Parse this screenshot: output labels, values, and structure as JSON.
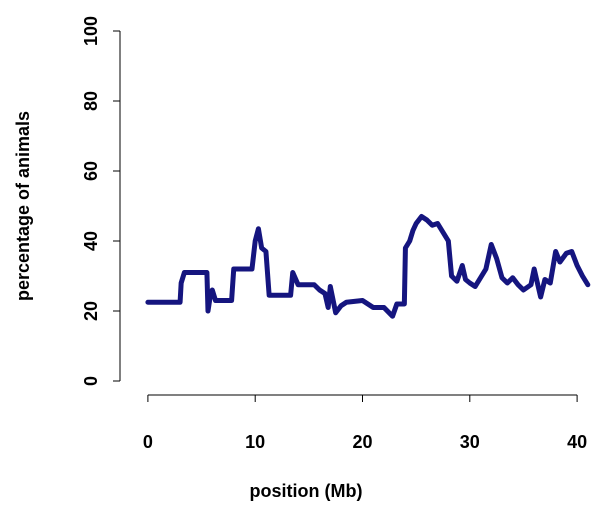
{
  "chart_data": {
    "type": "line",
    "xlabel": "position (Mb)",
    "ylabel": "percentage of animals",
    "x": [
      0,
      3,
      3.1,
      3.4,
      5.5,
      5.6,
      5.8,
      6,
      6.3,
      7.8,
      8,
      9.7,
      10,
      10.3,
      10.6,
      11,
      11.3,
      13.3,
      13.5,
      14,
      15.5,
      16,
      16.5,
      16.8,
      17,
      17.5,
      18,
      18.5,
      20,
      21,
      22,
      22.8,
      23.2,
      23.9,
      24,
      24.4,
      24.7,
      25,
      25.5,
      26,
      26.5,
      27,
      27.5,
      28,
      28.3,
      28.8,
      29.3,
      29.6,
      30,
      30.5,
      31,
      31.5,
      32,
      32.5,
      33,
      33.5,
      34,
      34.5,
      35,
      35.7,
      36,
      36.3,
      36.6,
      37,
      37.5,
      38,
      38.4,
      39,
      39.5,
      40,
      40.5,
      41
    ],
    "series": [
      {
        "color": "#15157f",
        "values": [
          22.5,
          22.5,
          28,
          31,
          31,
          20,
          24,
          26,
          23,
          23,
          32,
          32,
          40,
          43.5,
          38,
          37,
          24.5,
          24.5,
          31,
          27.5,
          27.5,
          26,
          25,
          21,
          27,
          19.5,
          21.5,
          22.5,
          23,
          21,
          21,
          18.5,
          22,
          22,
          38,
          40,
          43,
          45,
          47,
          46,
          44.5,
          45,
          42.5,
          40,
          30,
          28.5,
          33,
          29,
          28,
          27,
          29.5,
          32,
          39,
          35,
          29.5,
          28,
          29.5,
          27.5,
          26,
          27.5,
          32,
          28,
          24,
          29,
          28,
          37,
          34,
          36.5,
          37,
          33,
          30,
          27.5
        ]
      }
    ],
    "xlim": [
      -2.6,
      42.6
    ],
    "ylim": [
      -4,
      104
    ],
    "xticks": [
      0,
      10,
      20,
      30,
      40
    ],
    "yticks": [
      0,
      20,
      40,
      60,
      80,
      100
    ]
  }
}
